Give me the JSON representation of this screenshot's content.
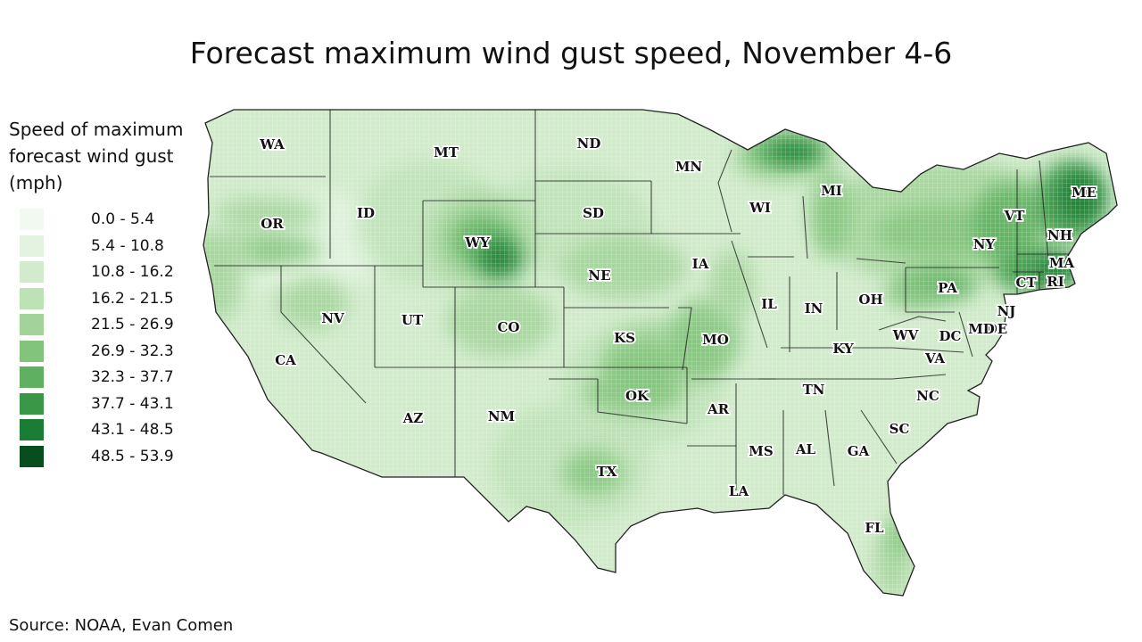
{
  "title": "Forecast maximum wind gust speed, November 4-6",
  "legend": {
    "title": "Speed of maximum forecast wind gust (mph)",
    "bins": [
      {
        "label": "0.0 - 5.4",
        "color": "#f2f9f1"
      },
      {
        "label": "5.4 - 10.8",
        "color": "#e3f3df"
      },
      {
        "label": "10.8 - 16.2",
        "color": "#d2ebcc"
      },
      {
        "label": "16.2 - 21.5",
        "color": "#bde2b6"
      },
      {
        "label": "21.5 - 26.9",
        "color": "#a2d49a"
      },
      {
        "label": "26.9 - 32.3",
        "color": "#82c47c"
      },
      {
        "label": "32.3 - 37.7",
        "color": "#5fb060"
      },
      {
        "label": "37.7 - 43.1",
        "color": "#3a9747"
      },
      {
        "label": "43.1 - 48.5",
        "color": "#1b7d33"
      },
      {
        "label": "48.5 - 53.9",
        "color": "#064e1e"
      }
    ]
  },
  "states": [
    "WA",
    "OR",
    "CA",
    "ID",
    "NV",
    "MT",
    "WY",
    "UT",
    "AZ",
    "CO",
    "NM",
    "ND",
    "SD",
    "NE",
    "KS",
    "OK",
    "TX",
    "MN",
    "IA",
    "MO",
    "AR",
    "LA",
    "WI",
    "IL",
    "MI",
    "IN",
    "KY",
    "TN",
    "MS",
    "AL",
    "GA",
    "FL",
    "SC",
    "NC",
    "VA",
    "WV",
    "OH",
    "PA",
    "NY",
    "VT",
    "NH",
    "ME",
    "MA",
    "CT",
    "RI",
    "NJ",
    "DE",
    "MD",
    "DC"
  ],
  "source": "Source: NOAA, Evan Comen"
}
